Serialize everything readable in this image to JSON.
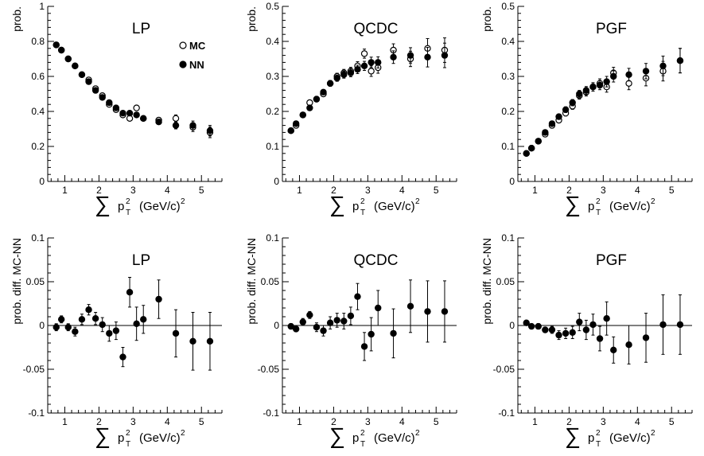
{
  "chart_data": [
    {
      "type": "scatter",
      "title": "LP",
      "ylabel": "prob.",
      "xlabel": {
        "sum": "∑",
        "p": "p",
        "sup": "2",
        "sub": "T",
        "unit": "(GeV/c)",
        "unit_sup": "2"
      },
      "xlim": [
        0.5,
        5.6
      ],
      "ylim": [
        0,
        1
      ],
      "xticks": [
        "1",
        "2",
        "3",
        "4",
        "5"
      ],
      "yticks": [
        "0",
        "0.2",
        "0.4",
        "0.6",
        "0.8",
        "1"
      ],
      "legend": [
        {
          "name": "MC",
          "marker": "open-circle"
        },
        {
          "name": "NN",
          "marker": "filled-circle"
        }
      ],
      "series": [
        {
          "name": "MC",
          "marker": "open-circle",
          "x": [
            0.75,
            0.9,
            1.1,
            1.3,
            1.5,
            1.7,
            1.9,
            2.1,
            2.3,
            2.5,
            2.7,
            2.9,
            3.1,
            3.3,
            3.75,
            4.25,
            4.75,
            5.25
          ],
          "y": [
            0.78,
            0.75,
            0.7,
            0.66,
            0.61,
            0.58,
            0.53,
            0.49,
            0.44,
            0.41,
            0.38,
            0.36,
            0.42,
            0.36,
            0.35,
            0.36,
            0.31,
            0.28
          ],
          "err": [
            0.005,
            0.005,
            0.005,
            0.005,
            0.006,
            0.007,
            0.008,
            0.008,
            0.009,
            0.01,
            0.01,
            0.012,
            0.012,
            0.012,
            0.015,
            0.02,
            0.025,
            0.03
          ]
        },
        {
          "name": "NN",
          "marker": "filled-circle",
          "x": [
            0.75,
            0.9,
            1.1,
            1.3,
            1.5,
            1.7,
            1.9,
            2.1,
            2.3,
            2.5,
            2.7,
            2.9,
            3.1,
            3.3,
            3.75,
            4.25,
            4.75,
            5.25
          ],
          "y": [
            0.78,
            0.75,
            0.7,
            0.66,
            0.61,
            0.57,
            0.52,
            0.48,
            0.45,
            0.42,
            0.39,
            0.39,
            0.38,
            0.36,
            0.34,
            0.32,
            0.32,
            0.29
          ],
          "err": [
            0.005,
            0.005,
            0.005,
            0.005,
            0.006,
            0.007,
            0.008,
            0.008,
            0.009,
            0.01,
            0.01,
            0.012,
            0.012,
            0.012,
            0.015,
            0.02,
            0.025,
            0.03
          ]
        }
      ]
    },
    {
      "type": "scatter",
      "title": "QCDC",
      "ylabel": "prob.",
      "xlabel": {
        "sum": "∑",
        "p": "p",
        "sup": "2",
        "sub": "T",
        "unit": "(GeV/c)",
        "unit_sup": "2"
      },
      "xlim": [
        0.5,
        5.6
      ],
      "ylim": [
        0,
        0.5
      ],
      "xticks": [
        "1",
        "2",
        "3",
        "4",
        "5"
      ],
      "yticks": [
        "0",
        "0.1",
        "0.2",
        "0.3",
        "0.4",
        "0.5"
      ],
      "series": [
        {
          "name": "MC",
          "marker": "open-circle",
          "x": [
            0.75,
            0.9,
            1.1,
            1.3,
            1.5,
            1.7,
            1.9,
            2.1,
            2.3,
            2.5,
            2.7,
            2.9,
            3.1,
            3.3,
            3.75,
            4.25,
            4.75,
            5.25
          ],
          "y": [
            0.145,
            0.16,
            0.19,
            0.225,
            0.235,
            0.25,
            0.28,
            0.3,
            0.31,
            0.315,
            0.33,
            0.365,
            0.315,
            0.325,
            0.375,
            0.35,
            0.38,
            0.375
          ],
          "err": [
            0.004,
            0.004,
            0.005,
            0.005,
            0.006,
            0.007,
            0.008,
            0.009,
            0.01,
            0.011,
            0.012,
            0.013,
            0.015,
            0.016,
            0.018,
            0.022,
            0.028,
            0.035
          ]
        },
        {
          "name": "NN",
          "marker": "filled-circle",
          "x": [
            0.75,
            0.9,
            1.1,
            1.3,
            1.5,
            1.7,
            1.9,
            2.1,
            2.3,
            2.5,
            2.7,
            2.9,
            3.1,
            3.3,
            3.75,
            4.25,
            4.75,
            5.25
          ],
          "y": [
            0.145,
            0.165,
            0.19,
            0.21,
            0.235,
            0.255,
            0.28,
            0.295,
            0.305,
            0.31,
            0.32,
            0.33,
            0.34,
            0.34,
            0.355,
            0.36,
            0.355,
            0.36
          ],
          "err": [
            0.004,
            0.004,
            0.005,
            0.005,
            0.006,
            0.007,
            0.008,
            0.009,
            0.01,
            0.011,
            0.012,
            0.013,
            0.015,
            0.016,
            0.018,
            0.022,
            0.028,
            0.035
          ]
        }
      ]
    },
    {
      "type": "scatter",
      "title": "PGF",
      "ylabel": "prob.",
      "xlabel": {
        "sum": "∑",
        "p": "p",
        "sup": "2",
        "sub": "T",
        "unit": "(GeV/c)",
        "unit_sup": "2"
      },
      "xlim": [
        0.5,
        5.6
      ],
      "ylim": [
        0,
        0.5
      ],
      "xticks": [
        "1",
        "2",
        "3",
        "4",
        "5"
      ],
      "yticks": [
        "0",
        "0.1",
        "0.2",
        "0.3",
        "0.4",
        "0.5"
      ],
      "series": [
        {
          "name": "MC",
          "marker": "open-circle",
          "x": [
            0.75,
            0.9,
            1.1,
            1.3,
            1.5,
            1.7,
            1.9,
            2.1,
            2.3,
            2.5,
            2.7,
            2.9,
            3.1,
            3.3,
            3.75,
            4.25,
            4.75,
            5.25
          ],
          "y": [
            0.08,
            0.095,
            0.115,
            0.135,
            0.16,
            0.175,
            0.195,
            0.215,
            0.245,
            0.255,
            0.27,
            0.28,
            0.27,
            0.31,
            0.28,
            0.295,
            0.315,
            0.345
          ],
          "err": [
            0.004,
            0.004,
            0.005,
            0.005,
            0.006,
            0.007,
            0.008,
            0.009,
            0.01,
            0.011,
            0.012,
            0.013,
            0.015,
            0.016,
            0.018,
            0.022,
            0.028,
            0.035
          ]
        },
        {
          "name": "NN",
          "marker": "filled-circle",
          "x": [
            0.75,
            0.9,
            1.1,
            1.3,
            1.5,
            1.7,
            1.9,
            2.1,
            2.3,
            2.5,
            2.7,
            2.9,
            3.1,
            3.3,
            3.75,
            4.25,
            4.75,
            5.25
          ],
          "y": [
            0.08,
            0.095,
            0.115,
            0.14,
            0.165,
            0.185,
            0.205,
            0.225,
            0.25,
            0.26,
            0.27,
            0.275,
            0.285,
            0.3,
            0.305,
            0.315,
            0.33,
            0.345
          ],
          "err": [
            0.004,
            0.004,
            0.005,
            0.005,
            0.006,
            0.007,
            0.008,
            0.009,
            0.01,
            0.011,
            0.012,
            0.013,
            0.015,
            0.016,
            0.018,
            0.022,
            0.028,
            0.035
          ]
        }
      ]
    },
    {
      "type": "scatter",
      "title": "LP",
      "ylabel": "prob. diff. MC-NN",
      "xlabel": {
        "sum": "∑",
        "p": "p",
        "sup": "2",
        "sub": "T",
        "unit": "(GeV/c)",
        "unit_sup": "2"
      },
      "xlim": [
        0.5,
        5.6
      ],
      "ylim": [
        -0.1,
        0.1
      ],
      "zero_line": true,
      "xticks": [
        "1",
        "2",
        "3",
        "4",
        "5"
      ],
      "yticks": [
        "-0.1",
        "-0.05",
        "0",
        "0.05",
        "0.1"
      ],
      "series": [
        {
          "name": "MC-NN",
          "marker": "filled-circle",
          "x": [
            0.75,
            0.9,
            1.1,
            1.3,
            1.5,
            1.7,
            1.9,
            2.1,
            2.3,
            2.5,
            2.7,
            2.9,
            3.1,
            3.3,
            3.75,
            4.25,
            4.75,
            5.25
          ],
          "y": [
            -0.002,
            0.007,
            -0.002,
            -0.007,
            0.007,
            0.018,
            0.008,
            0.001,
            -0.009,
            -0.006,
            -0.036,
            0.038,
            0.002,
            0.007,
            0.03,
            -0.009,
            -0.018,
            -0.018
          ],
          "err": [
            0.004,
            0.004,
            0.004,
            0.005,
            0.006,
            0.006,
            0.007,
            0.008,
            0.009,
            0.01,
            0.011,
            0.017,
            0.019,
            0.016,
            0.022,
            0.027,
            0.033,
            0.033
          ]
        }
      ]
    },
    {
      "type": "scatter",
      "title": "QCDC",
      "ylabel": "prob. diff. MC-NN",
      "xlabel": {
        "sum": "∑",
        "p": "p",
        "sup": "2",
        "sub": "T",
        "unit": "(GeV/c)",
        "unit_sup": "2"
      },
      "xlim": [
        0.5,
        5.6
      ],
      "ylim": [
        -0.1,
        0.1
      ],
      "zero_line": true,
      "xticks": [
        "1",
        "2",
        "3",
        "4",
        "5"
      ],
      "yticks": [
        "-0.1",
        "-0.05",
        "0",
        "0.05",
        "0.1"
      ],
      "series": [
        {
          "name": "MC-NN",
          "marker": "filled-circle",
          "x": [
            0.75,
            0.9,
            1.1,
            1.3,
            1.5,
            1.7,
            1.9,
            2.1,
            2.3,
            2.5,
            2.7,
            2.9,
            3.1,
            3.3,
            3.75,
            4.25,
            4.75,
            5.25
          ],
          "y": [
            -0.001,
            -0.004,
            0.004,
            0.012,
            -0.002,
            -0.006,
            0.003,
            0.006,
            0.005,
            0.011,
            0.033,
            -0.024,
            -0.01,
            0.02,
            -0.009,
            0.022,
            0.016,
            0.016
          ],
          "err": [
            0.003,
            0.003,
            0.004,
            0.004,
            0.005,
            0.006,
            0.007,
            0.008,
            0.009,
            0.01,
            0.015,
            0.016,
            0.019,
            0.02,
            0.028,
            0.03,
            0.035,
            0.035
          ]
        }
      ]
    },
    {
      "type": "scatter",
      "title": "PGF",
      "ylabel": "prob. diff. MC-NN",
      "xlabel": {
        "sum": "∑",
        "p": "p",
        "sup": "2",
        "sub": "T",
        "unit": "(GeV/c)",
        "unit_sup": "2"
      },
      "xlim": [
        0.5,
        5.6
      ],
      "ylim": [
        -0.1,
        0.1
      ],
      "zero_line": true,
      "xticks": [
        "1",
        "2",
        "3",
        "4",
        "5"
      ],
      "yticks": [
        "-0.1",
        "-0.05",
        "0",
        "0.05",
        "0.1"
      ],
      "series": [
        {
          "name": "MC-NN",
          "marker": "filled-circle",
          "x": [
            0.75,
            0.9,
            1.1,
            1.3,
            1.5,
            1.7,
            1.9,
            2.1,
            2.3,
            2.5,
            2.7,
            2.9,
            3.1,
            3.3,
            3.75,
            4.25,
            4.75,
            5.25
          ],
          "y": [
            0.003,
            -0.001,
            -0.001,
            -0.005,
            -0.005,
            -0.011,
            -0.009,
            -0.008,
            0.004,
            -0.005,
            0.001,
            -0.015,
            0.008,
            -0.028,
            -0.022,
            -0.014,
            0.001,
            0.001
          ],
          "err": [
            0.002,
            0.002,
            0.003,
            0.003,
            0.004,
            0.005,
            0.006,
            0.007,
            0.01,
            0.011,
            0.012,
            0.014,
            0.019,
            0.015,
            0.022,
            0.028,
            0.034,
            0.034
          ]
        }
      ]
    }
  ]
}
